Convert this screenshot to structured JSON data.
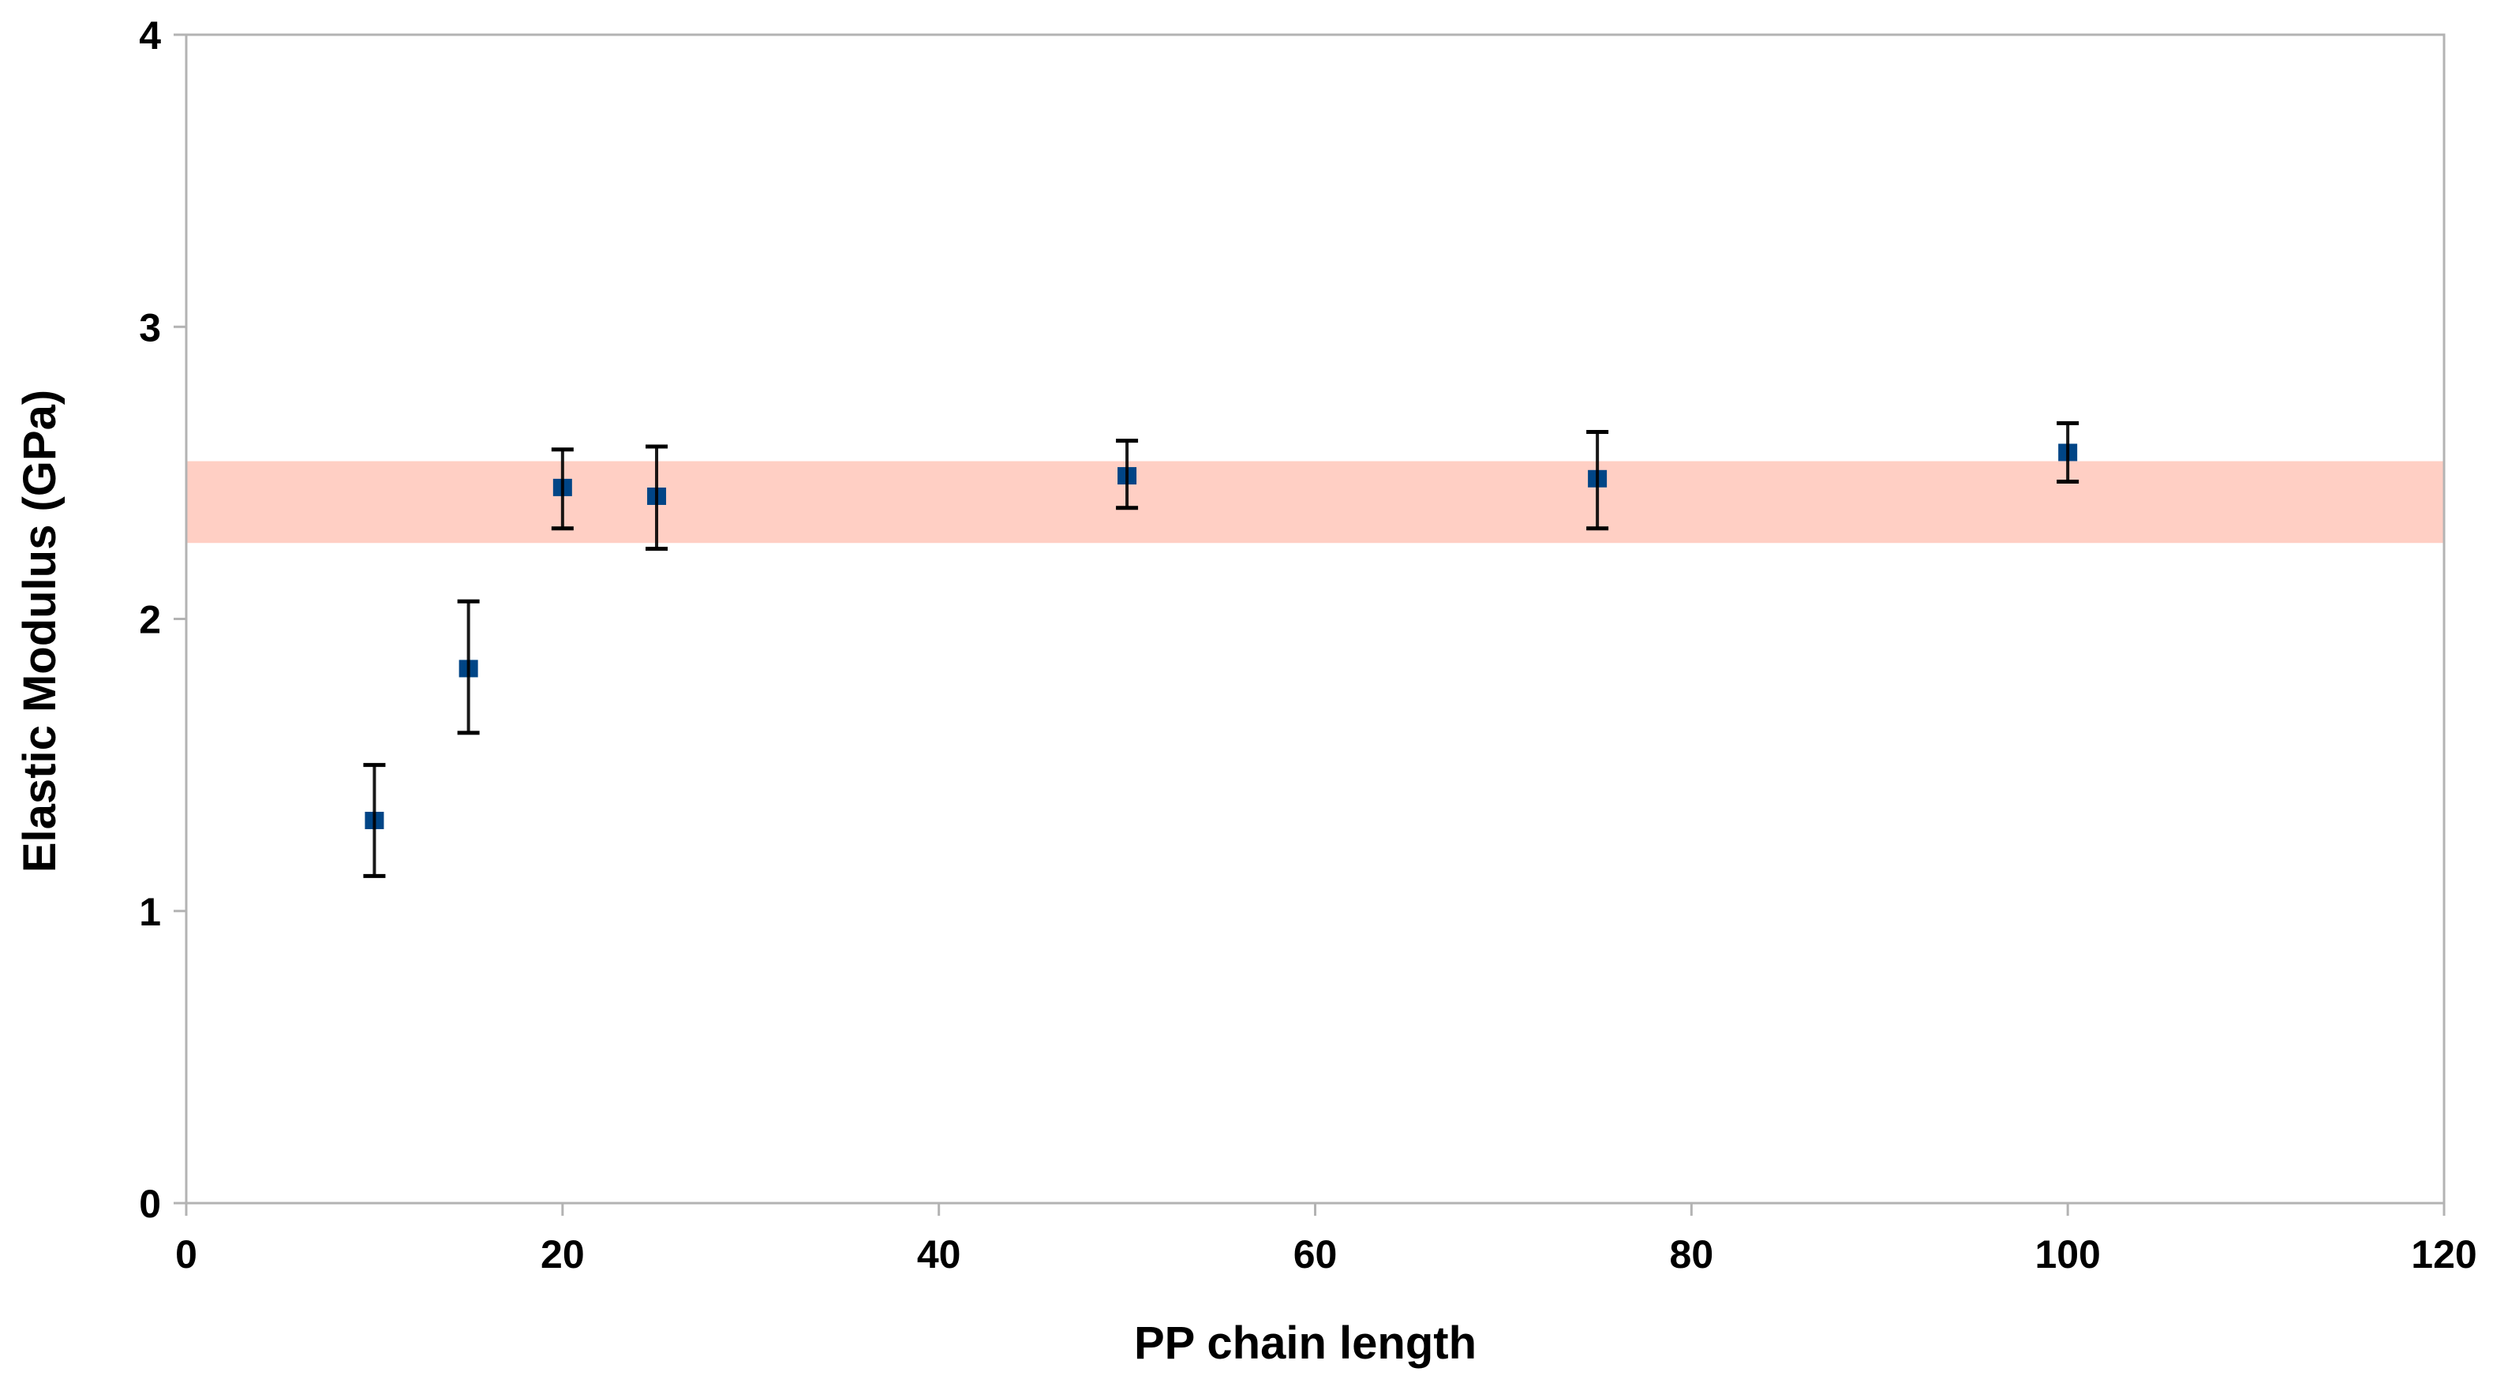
{
  "chart_data": {
    "type": "scatter",
    "title": "",
    "xlabel": "PP chain length",
    "ylabel": "Elastic Modulus (GPa)",
    "xlim": [
      0,
      120
    ],
    "ylim": [
      0,
      4
    ],
    "xticks": [
      0,
      20,
      40,
      60,
      80,
      100,
      120
    ],
    "yticks": [
      0,
      1,
      2,
      3,
      4
    ],
    "grid": false,
    "legend": "none",
    "series": [
      {
        "x": [
          10,
          15,
          20,
          25,
          50,
          75,
          100
        ],
        "y": [
          1.31,
          1.83,
          2.45,
          2.42,
          2.49,
          2.48,
          2.57
        ],
        "error_upper": [
          1.5,
          2.06,
          2.58,
          2.59,
          2.61,
          2.64,
          2.67
        ],
        "error_lower": [
          1.12,
          1.61,
          2.31,
          2.24,
          2.38,
          2.31,
          2.47
        ],
        "marker": "square",
        "color": "#004586"
      }
    ],
    "band": {
      "y_low": 2.26,
      "y_high": 2.54,
      "color": "#ffcfc4"
    },
    "axis_color": "#b3b3b3"
  }
}
